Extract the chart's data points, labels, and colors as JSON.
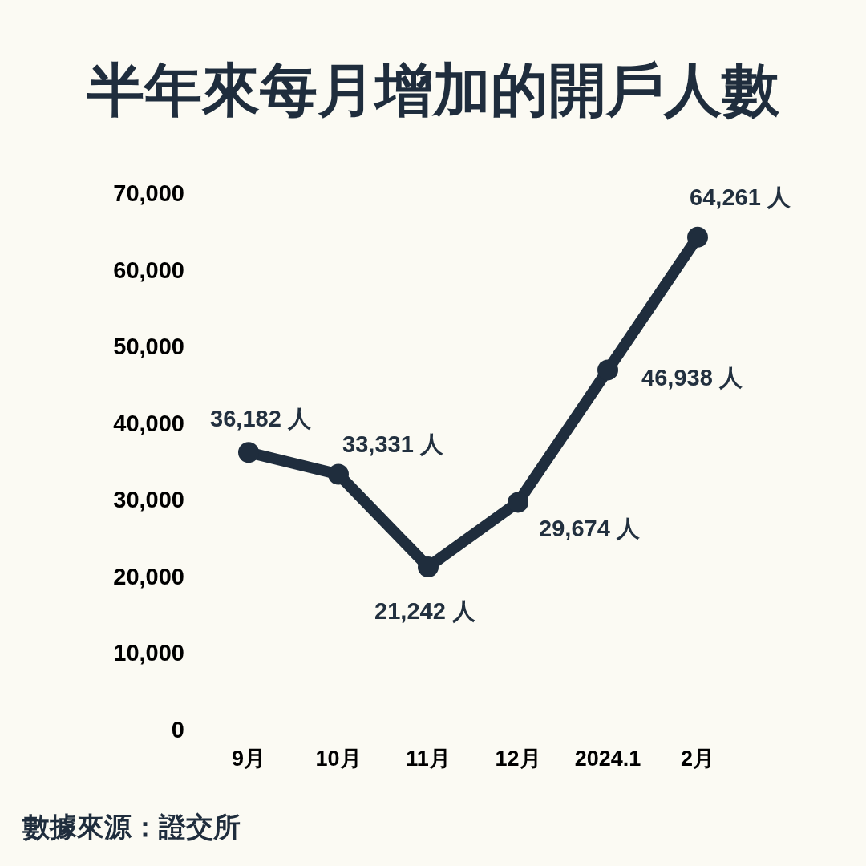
{
  "chart_data": {
    "type": "line",
    "title": "半年來每月增加的開戶人數",
    "categories": [
      "9月",
      "10月",
      "11月",
      "12月",
      "2024.1",
      "2月"
    ],
    "values": [
      36182,
      33331,
      21242,
      29674,
      46938,
      64261
    ],
    "value_labels": [
      "36,182 人",
      "33,331 人",
      "21,242 人",
      "29,674 人",
      "46,938 人",
      "64,261 人"
    ],
    "color": "#1f2d3d",
    "ylim": [
      0,
      70000
    ],
    "yticks": [
      0,
      {
        "value": 10000,
        "label": "10,000"
      },
      {
        "value": 20000,
        "label": "20,000"
      },
      {
        "value": 30000,
        "label": "30,000"
      },
      {
        "value": 40000,
        "label": "40,000"
      },
      {
        "value": 50000,
        "label": "50,000"
      },
      {
        "value": 60000,
        "label": "60,000"
      },
      {
        "value": 70000,
        "label": "70,000"
      }
    ],
    "marker": "circle",
    "line_style": "solid",
    "grid": false,
    "annotations": [
      "數據來源：證交所"
    ]
  }
}
